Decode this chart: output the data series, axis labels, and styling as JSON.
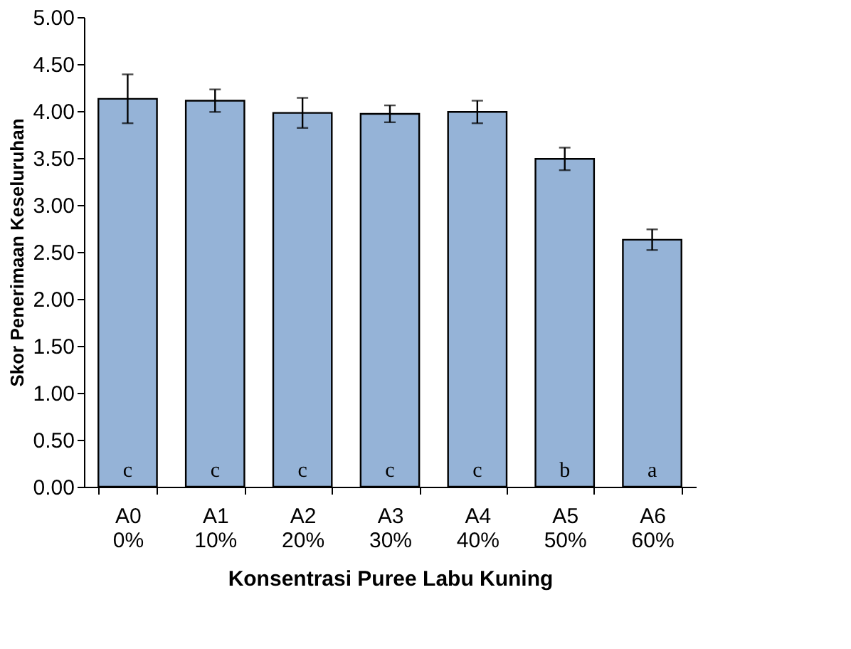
{
  "chart_data": {
    "type": "bar",
    "xlabel": "Konsentrasi  Puree  Labu Kuning",
    "ylabel": "Skor Penerimaan Keseluruhan",
    "categories": [
      "A0\n0%",
      "A1\n10%",
      "A2\n20%",
      "A3\n30%",
      "A4\n40%",
      "A5\n50%",
      "A6\n60%"
    ],
    "values": [
      4.13,
      4.11,
      3.98,
      3.97,
      3.99,
      3.49,
      2.63
    ],
    "errors": [
      0.26,
      0.12,
      0.16,
      0.09,
      0.12,
      0.12,
      0.11
    ],
    "value_labels": [
      "c",
      "c",
      "c",
      "c",
      "c",
      "b",
      "a"
    ],
    "color": "#95b3d7",
    "ylim": [
      0,
      5
    ],
    "yticks": [
      {
        "value": 0,
        "label": "0.00"
      },
      {
        "value": 0.5,
        "label": "0.50"
      },
      {
        "value": 1,
        "label": "1.00"
      },
      {
        "value": 1.5,
        "label": "1.50"
      },
      {
        "value": 2,
        "label": "2.00"
      },
      {
        "value": 2.5,
        "label": "2.50"
      },
      {
        "value": 3,
        "label": "3.00"
      },
      {
        "value": 3.5,
        "label": "3.50"
      },
      {
        "value": 4,
        "label": "4.00"
      },
      {
        "value": 4.5,
        "label": "4.50"
      },
      {
        "value": 5,
        "label": "5.00"
      }
    ],
    "grid": false,
    "legend": false
  }
}
